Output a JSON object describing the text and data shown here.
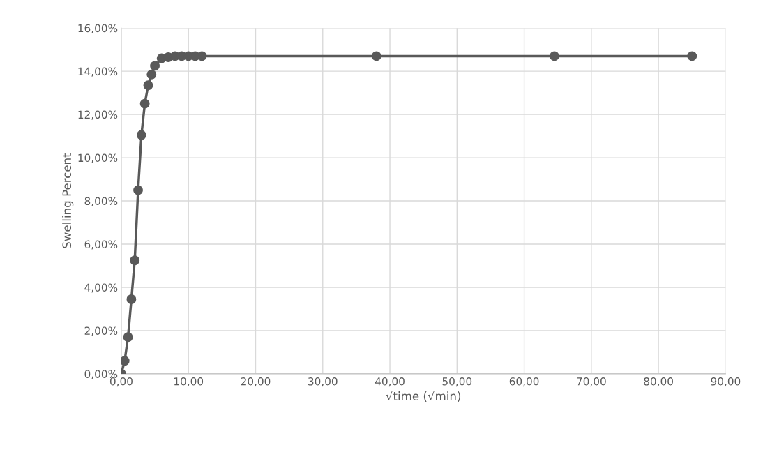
{
  "chart_data": {
    "type": "line",
    "xlabel": "√time (√min)",
    "ylabel": "Swelling Percent",
    "x": [
      0,
      0.5,
      1,
      1.5,
      2,
      2.5,
      3,
      3.5,
      4,
      4.5,
      5,
      6,
      7,
      8,
      9,
      10,
      11,
      12,
      38,
      64.5,
      85
    ],
    "series": [
      {
        "color": "#595959",
        "values": [
          0,
          0.6,
          1.7,
          3.45,
          5.25,
          8.5,
          11.05,
          12.5,
          13.35,
          13.85,
          14.25,
          14.6,
          14.65,
          14.7,
          14.7,
          14.7,
          14.7,
          14.7,
          14.7,
          14.7,
          14.7
        ]
      }
    ],
    "marker": "circle",
    "line_style": "solid",
    "grid": true,
    "legend": false,
    "xlim": [
      0,
      90
    ],
    "xticks": [
      {
        "value": 0,
        "label": "0,00"
      },
      {
        "value": 10,
        "label": "10,00"
      },
      {
        "value": 20,
        "label": "20,00"
      },
      {
        "value": 30,
        "label": "30,00"
      },
      {
        "value": 40,
        "label": "40,00"
      },
      {
        "value": 50,
        "label": "50,00"
      },
      {
        "value": 60,
        "label": "60,00"
      },
      {
        "value": 70,
        "label": "70,00"
      },
      {
        "value": 80,
        "label": "80,00"
      },
      {
        "value": 90,
        "label": "90,00"
      }
    ],
    "ylim": [
      0,
      16
    ],
    "yticks": [
      {
        "value": 0,
        "label": "0,00%"
      },
      {
        "value": 2,
        "label": "2,00%"
      },
      {
        "value": 4,
        "label": "4,00%"
      },
      {
        "value": 6,
        "label": "6,00%"
      },
      {
        "value": 8,
        "label": "8,00%"
      },
      {
        "value": 10,
        "label": "10,00%"
      },
      {
        "value": 12,
        "label": "12,00%"
      },
      {
        "value": 14,
        "label": "14,00%"
      },
      {
        "value": 16,
        "label": "16,00%"
      }
    ]
  }
}
